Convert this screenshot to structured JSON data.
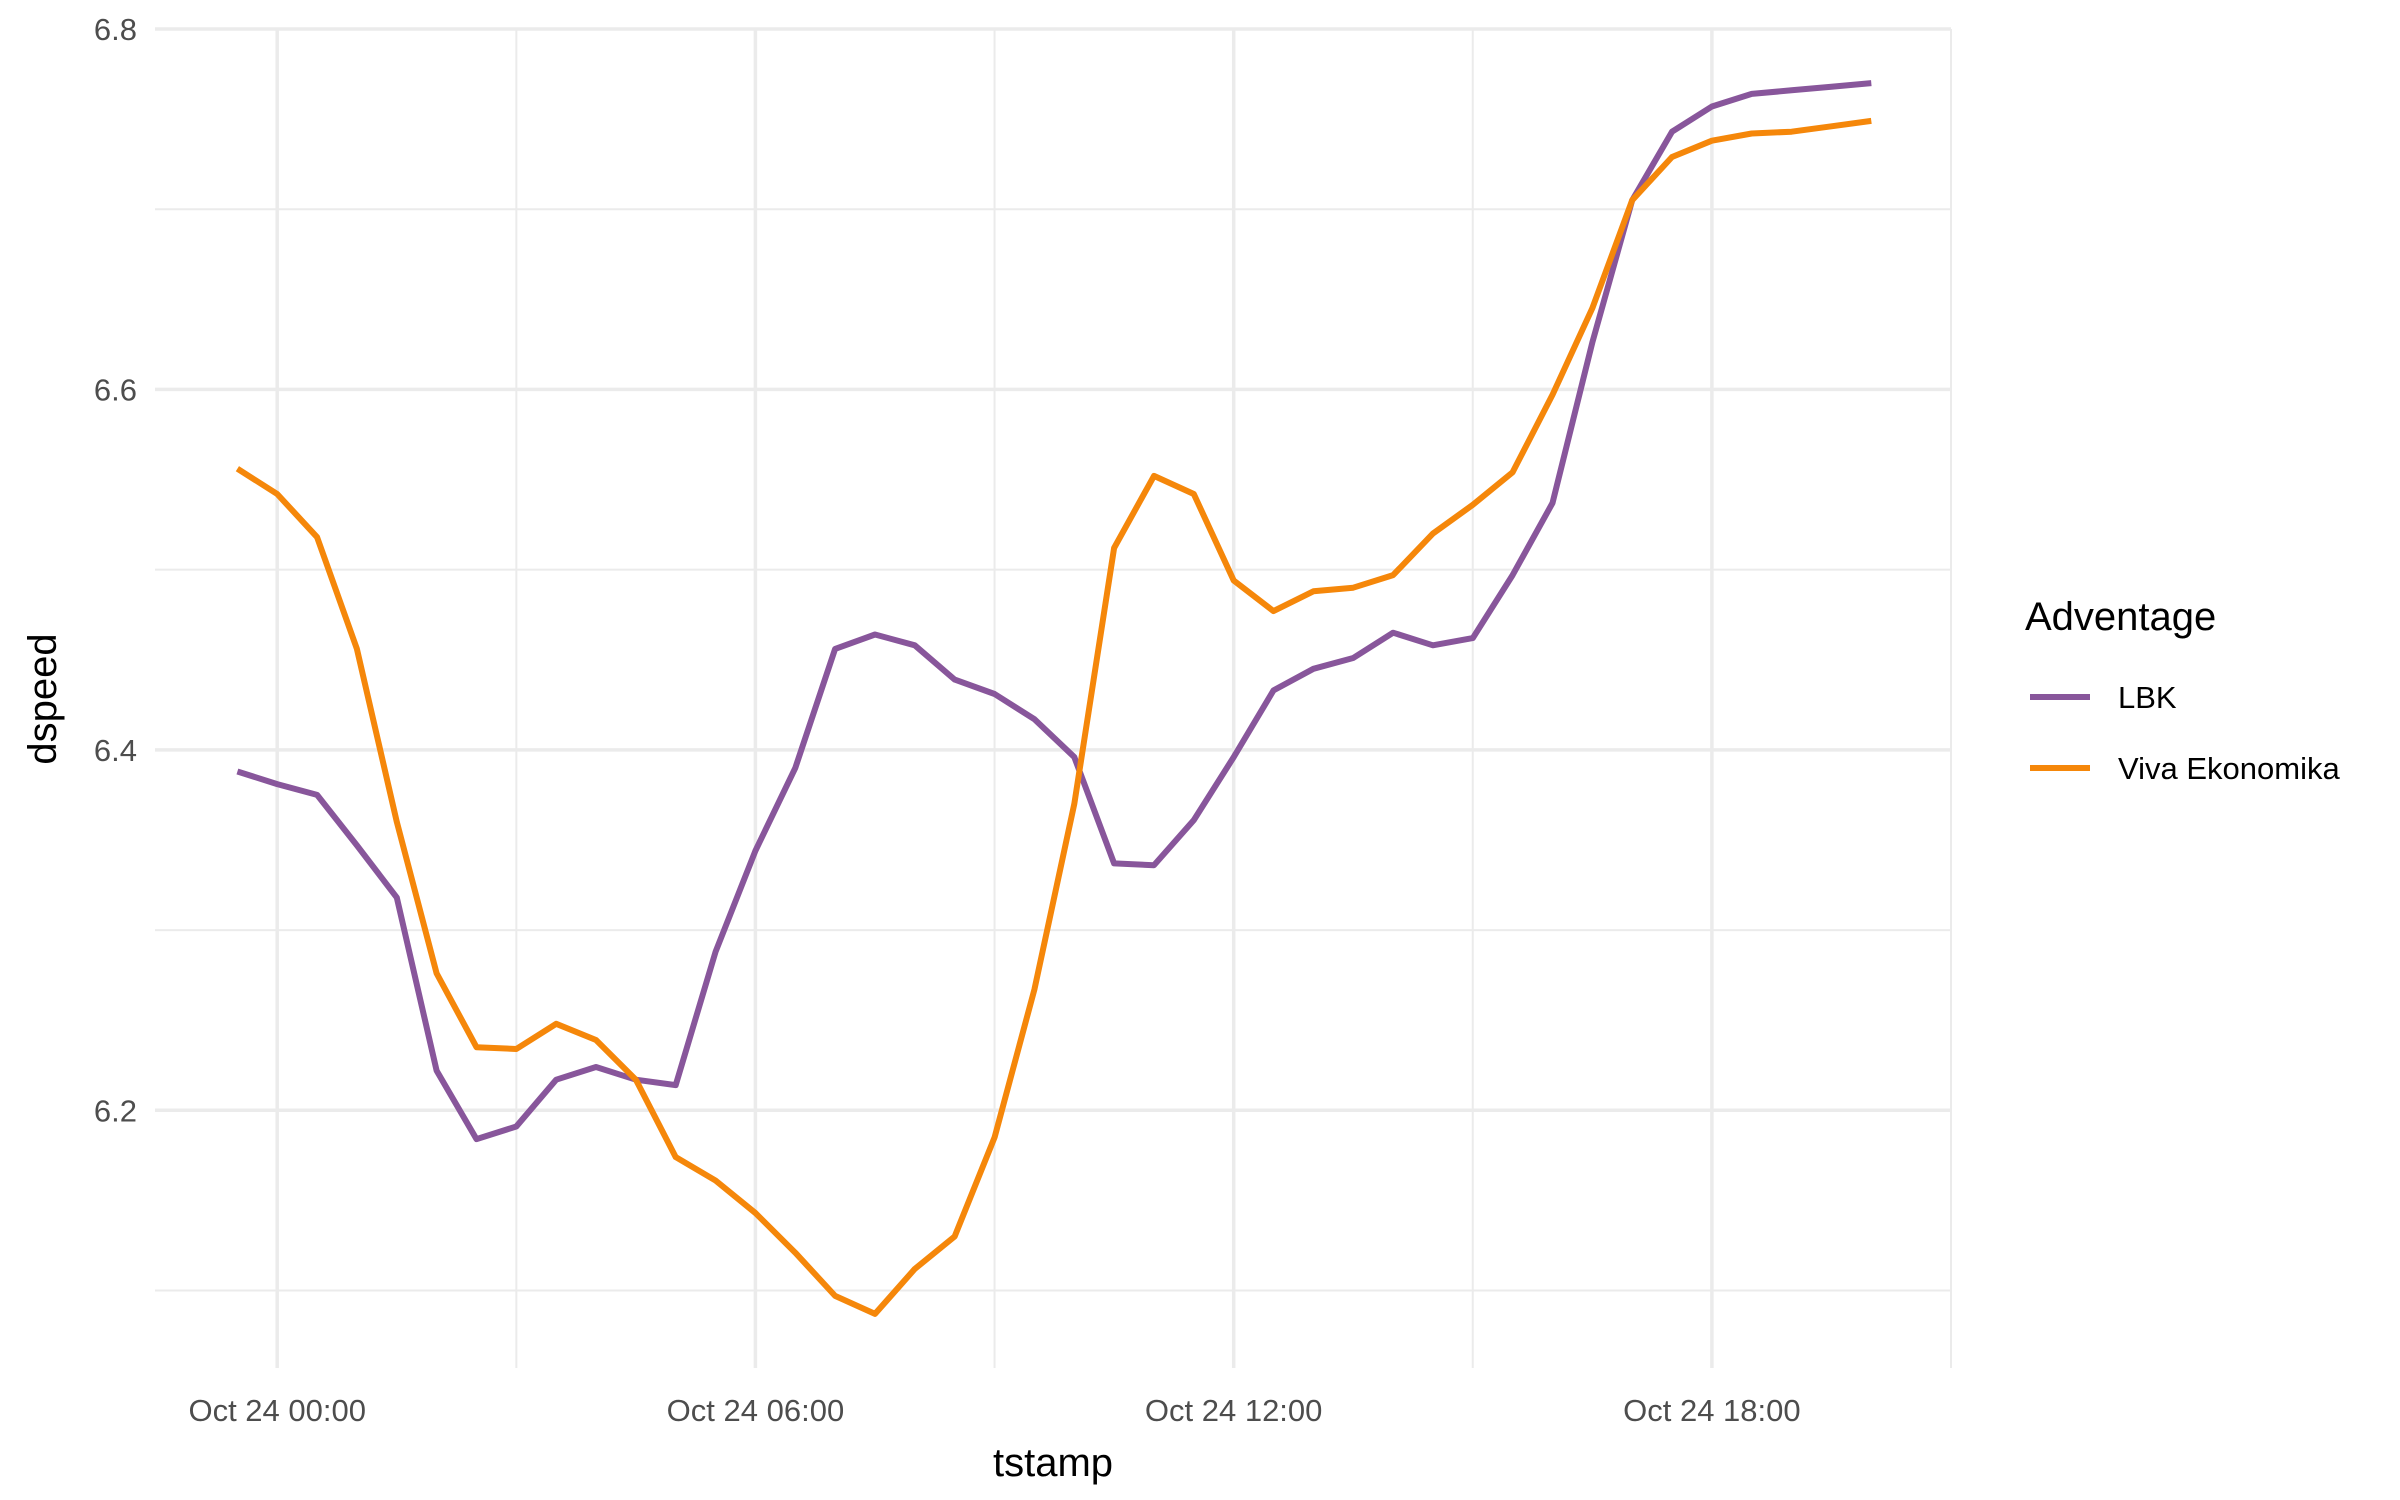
{
  "chart_data": {
    "type": "line",
    "x_label": "tstamp",
    "y_label": "dspeed",
    "legend_title": "Adventage",
    "legend": "right",
    "grid": true,
    "x": [
      "Oct 23 23:30",
      "Oct 24 00:00",
      "Oct 24 00:30",
      "Oct 24 01:00",
      "Oct 24 01:30",
      "Oct 24 02:00",
      "Oct 24 02:30",
      "Oct 24 03:00",
      "Oct 24 03:30",
      "Oct 24 04:00",
      "Oct 24 04:30",
      "Oct 24 05:00",
      "Oct 24 05:30",
      "Oct 24 06:00",
      "Oct 24 06:30",
      "Oct 24 07:00",
      "Oct 24 07:30",
      "Oct 24 08:00",
      "Oct 24 08:30",
      "Oct 24 09:00",
      "Oct 24 09:30",
      "Oct 24 10:00",
      "Oct 24 10:30",
      "Oct 24 11:00",
      "Oct 24 11:30",
      "Oct 24 12:00",
      "Oct 24 12:30",
      "Oct 24 13:00",
      "Oct 24 13:30",
      "Oct 24 14:00",
      "Oct 24 14:30",
      "Oct 24 15:00",
      "Oct 24 15:30",
      "Oct 24 16:00",
      "Oct 24 16:30",
      "Oct 24 17:00",
      "Oct 24 17:30",
      "Oct 24 18:00",
      "Oct 24 18:30",
      "Oct 24 19:00",
      "Oct 24 19:30",
      "Oct 24 20:00"
    ],
    "series": [
      {
        "name": "LBK",
        "color": "#88569b",
        "values": [
          6.388,
          6.381,
          6.375,
          6.347,
          6.318,
          6.222,
          6.184,
          6.191,
          6.217,
          6.224,
          6.217,
          6.214,
          6.288,
          6.344,
          6.39,
          6.456,
          6.464,
          6.458,
          6.439,
          6.431,
          6.417,
          6.396,
          6.337,
          6.336,
          6.361,
          6.396,
          6.433,
          6.445,
          6.451,
          6.465,
          6.458,
          6.462,
          6.497,
          6.537,
          6.626,
          6.705,
          6.743,
          6.757,
          6.764,
          6.766,
          6.768,
          6.77
        ]
      },
      {
        "name": "Viva Ekonomika",
        "color": "#f5870a",
        "values": [
          6.556,
          6.542,
          6.518,
          6.456,
          6.36,
          6.276,
          6.235,
          6.234,
          6.248,
          6.239,
          6.217,
          6.174,
          6.161,
          6.143,
          6.121,
          6.097,
          6.087,
          6.112,
          6.13,
          6.185,
          6.267,
          6.37,
          6.512,
          6.552,
          6.542,
          6.494,
          6.477,
          6.488,
          6.49,
          6.497,
          6.52,
          6.536,
          6.554,
          6.597,
          6.645,
          6.705,
          6.729,
          6.738,
          6.742,
          6.743,
          6.746,
          6.749
        ]
      }
    ],
    "xlim": [
      "Oct 23 22:28",
      "Oct 24 21:00"
    ],
    "xticks": [
      "Oct 24 00:00",
      "Oct 24 06:00",
      "Oct 24 12:00",
      "Oct 24 18:00"
    ],
    "ylim": [
      6.057,
      6.8
    ],
    "yticks": [
      6.2,
      6.4,
      6.6,
      6.8
    ]
  }
}
